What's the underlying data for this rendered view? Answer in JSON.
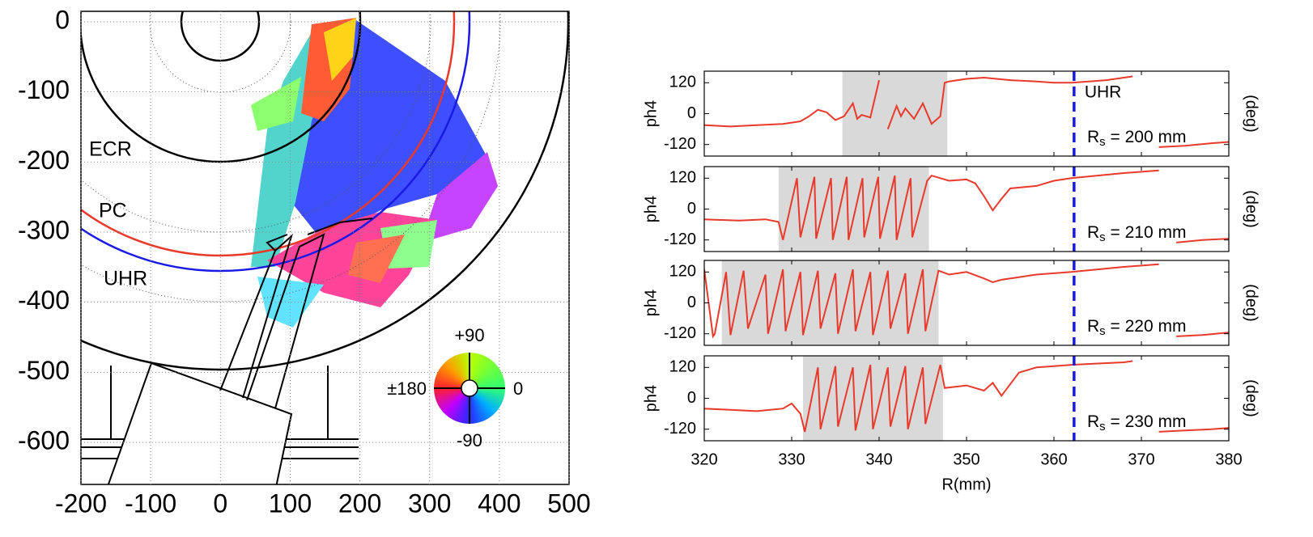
{
  "chart_data": [
    {
      "type": "map",
      "xlim": [
        -200,
        500
      ],
      "ylim": [
        -660,
        15
      ],
      "xticks": [
        -200,
        -100,
        0,
        100,
        200,
        300,
        400,
        500
      ],
      "yticks": [
        0,
        -100,
        -200,
        -300,
        -400,
        -500,
        -600
      ],
      "grid": true,
      "labels": [
        {
          "text": "ECR",
          "color": "#000000"
        },
        {
          "text": "PC",
          "color": "#e8392a"
        },
        {
          "text": "UHR",
          "color": "#1a1ae6"
        }
      ],
      "colorwheel": {
        "top": "+90",
        "bottom": "-90",
        "left": "±180",
        "right": "0"
      }
    },
    {
      "type": "line",
      "xlim": [
        320,
        380
      ],
      "ylim": [
        -165,
        165
      ],
      "xticks": [
        320,
        330,
        340,
        350,
        360,
        370,
        380
      ],
      "yticks": [
        -120,
        0,
        120
      ],
      "ylabel": "ph4",
      "y2label": "(deg)",
      "span": [
        335.8,
        347.8
      ],
      "span_color": "#d9d9d9",
      "vline": {
        "x": 362.3,
        "color": "#1a1ae6",
        "label": "UHR"
      },
      "annotation": {
        "text": "R",
        "sub": "s",
        "rest": " = 200 mm"
      },
      "color": "#e8392a",
      "x": [
        320,
        323,
        326,
        329,
        331,
        332,
        333,
        334,
        335,
        336,
        337,
        337.5,
        338,
        339,
        340,
        340.3,
        341,
        342,
        342.5,
        343,
        344,
        345,
        346,
        347,
        347.5,
        348,
        350,
        352,
        355,
        358,
        360,
        362,
        364,
        366,
        368,
        369,
        370,
        372,
        375,
        378,
        380
      ],
      "values": [
        -45,
        -50,
        -45,
        -40,
        -30,
        -10,
        15,
        5,
        -25,
        -10,
        40,
        -20,
        -5,
        -15,
        130,
        null,
        -60,
        30,
        -10,
        20,
        -20,
        40,
        -40,
        -10,
        120,
        125,
        135,
        140,
        130,
        125,
        120,
        120,
        125,
        130,
        140,
        145,
        null,
        -130,
        -125,
        -115,
        -110
      ]
    },
    {
      "type": "line",
      "xlim": [
        320,
        380
      ],
      "ylim": [
        -165,
        165
      ],
      "xticks": [
        320,
        330,
        340,
        350,
        360,
        370,
        380
      ],
      "yticks": [
        -120,
        0,
        120
      ],
      "ylabel": "ph4",
      "y2label": "(deg)",
      "span": [
        328.5,
        345.7
      ],
      "span_color": "#d9d9d9",
      "vline": {
        "x": 362.3,
        "color": "#1a1ae6"
      },
      "annotation": {
        "text": "R",
        "sub": "s",
        "rest": " = 210 mm"
      },
      "color": "#e8392a",
      "x": [
        320,
        324,
        327,
        328.5,
        329,
        330.6,
        331,
        332.6,
        332.8,
        334.5,
        334.7,
        336.3,
        336.5,
        338.1,
        338.3,
        339.9,
        340.1,
        341.8,
        342,
        343.6,
        343.8,
        345.5,
        346,
        348,
        350,
        351,
        352,
        353,
        354,
        355,
        358,
        360,
        362,
        365,
        368,
        372,
        373,
        374,
        377,
        380
      ],
      "values": [
        -40,
        -45,
        -40,
        -50,
        -120,
        120,
        -110,
        125,
        -115,
        120,
        -120,
        125,
        -120,
        120,
        -110,
        125,
        -115,
        130,
        -120,
        120,
        -110,
        110,
        130,
        110,
        115,
        100,
        50,
        -5,
        40,
        80,
        90,
        110,
        120,
        130,
        140,
        150,
        null,
        -130,
        -120,
        -115
      ]
    },
    {
      "type": "line",
      "xlim": [
        320,
        380
      ],
      "ylim": [
        -165,
        165
      ],
      "xticks": [
        320,
        330,
        340,
        350,
        360,
        370,
        380
      ],
      "yticks": [
        -120,
        0,
        120
      ],
      "ylabel": "ph4",
      "y2label": "(deg)",
      "span": [
        322,
        346.8
      ],
      "span_color": "#d9d9d9",
      "vline": {
        "x": 362.3,
        "color": "#1a1ae6"
      },
      "annotation": {
        "text": "R",
        "sub": "s",
        "rest": " = 220 mm"
      },
      "color": "#e8392a",
      "x": [
        320,
        321,
        321.2,
        322.5,
        323,
        324.5,
        325,
        327,
        327.3,
        329,
        329.3,
        331,
        331.3,
        333,
        333.3,
        335,
        335.3,
        337,
        337.3,
        339,
        339.3,
        341,
        341.3,
        343,
        343.3,
        345,
        345.3,
        346.8,
        348,
        350,
        352,
        353,
        354,
        356,
        358,
        360,
        362,
        365,
        368,
        372,
        373,
        374,
        377,
        380
      ],
      "values": [
        130,
        -130,
        -120,
        120,
        -125,
        125,
        -100,
        110,
        -120,
        130,
        -110,
        120,
        -125,
        125,
        -100,
        115,
        -120,
        130,
        -110,
        120,
        -125,
        125,
        -100,
        115,
        -120,
        130,
        -110,
        125,
        110,
        120,
        95,
        80,
        90,
        100,
        110,
        115,
        120,
        130,
        140,
        150,
        null,
        -130,
        -125,
        -115
      ]
    },
    {
      "type": "line",
      "xlim": [
        320,
        380
      ],
      "ylim": [
        -165,
        165
      ],
      "xticks": [
        320,
        330,
        340,
        350,
        360,
        370,
        380
      ],
      "yticks": [
        -120,
        0,
        120
      ],
      "ylabel": "ph4",
      "y2label": "(deg)",
      "xlabel": "R(mm)",
      "span": [
        331.3,
        347.3
      ],
      "span_color": "#d9d9d9",
      "vline": {
        "x": 362.3,
        "color": "#1a1ae6"
      },
      "annotation": {
        "text": "R",
        "sub": "s",
        "rest": " = 230 mm"
      },
      "color": "#e8392a",
      "x": [
        320,
        323,
        326,
        329,
        330,
        331,
        331.5,
        333,
        333.3,
        335,
        335.3,
        337,
        337.3,
        339,
        339.3,
        341,
        341.3,
        343,
        343.3,
        345,
        345.3,
        347,
        347.5,
        350,
        352,
        353,
        354,
        356,
        358,
        360,
        362,
        365,
        368,
        369,
        370,
        372,
        375,
        378,
        380
      ],
      "values": [
        -40,
        -45,
        -50,
        -40,
        -20,
        -60,
        -130,
        120,
        -120,
        125,
        -110,
        120,
        -125,
        130,
        -120,
        120,
        -110,
        125,
        -120,
        120,
        -100,
        130,
        40,
        50,
        30,
        60,
        10,
        100,
        120,
        125,
        130,
        135,
        140,
        145,
        null,
        -130,
        -125,
        -120,
        -115
      ]
    }
  ]
}
